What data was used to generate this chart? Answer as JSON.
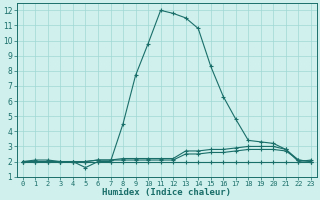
{
  "xlabel": "Humidex (Indice chaleur)",
  "bg_color": "#cff0ec",
  "line_color": "#1a6e6a",
  "grid_color": "#a0d8d4",
  "xlim": [
    -0.5,
    23.5
  ],
  "ylim": [
    1,
    12.5
  ],
  "xticks": [
    0,
    1,
    2,
    3,
    4,
    5,
    6,
    7,
    8,
    9,
    10,
    11,
    12,
    13,
    14,
    15,
    16,
    17,
    18,
    19,
    20,
    21,
    22,
    23
  ],
  "yticks": [
    1,
    2,
    3,
    4,
    5,
    6,
    7,
    8,
    9,
    10,
    11,
    12
  ],
  "lines": [
    {
      "x": [
        0,
        1,
        2,
        3,
        4,
        5,
        6,
        7,
        8,
        9,
        10,
        11,
        12,
        13,
        14,
        15,
        16,
        17,
        18,
        19,
        20,
        21,
        22,
        23
      ],
      "y": [
        2.0,
        2.1,
        2.1,
        2.0,
        2.0,
        1.6,
        2.0,
        2.0,
        4.5,
        7.7,
        9.8,
        12.0,
        11.8,
        11.5,
        10.8,
        8.3,
        6.3,
        4.8,
        3.4,
        3.3,
        3.2,
        2.8,
        2.0,
        2.1
      ]
    },
    {
      "x": [
        0,
        1,
        2,
        3,
        4,
        5,
        6,
        7,
        8,
        9,
        10,
        11,
        12,
        13,
        14,
        15,
        16,
        17,
        18,
        19,
        20,
        21,
        22,
        23
      ],
      "y": [
        2.0,
        2.0,
        2.0,
        2.0,
        2.0,
        2.0,
        2.1,
        2.1,
        2.1,
        2.1,
        2.1,
        2.1,
        2.1,
        2.5,
        2.5,
        2.6,
        2.6,
        2.7,
        2.8,
        2.8,
        2.8,
        2.7,
        2.1,
        2.0
      ]
    },
    {
      "x": [
        0,
        1,
        2,
        3,
        4,
        5,
        6,
        7,
        8,
        9,
        10,
        11,
        12,
        13,
        14,
        15,
        16,
        17,
        18,
        19,
        20,
        21,
        22,
        23
      ],
      "y": [
        2.0,
        2.0,
        2.0,
        2.0,
        2.0,
        2.0,
        2.1,
        2.1,
        2.2,
        2.2,
        2.2,
        2.2,
        2.2,
        2.7,
        2.7,
        2.8,
        2.8,
        2.9,
        3.0,
        3.0,
        3.0,
        2.8,
        2.1,
        2.0
      ]
    },
    {
      "x": [
        0,
        1,
        2,
        3,
        4,
        5,
        6,
        7,
        8,
        9,
        10,
        11,
        12,
        13,
        14,
        15,
        16,
        17,
        18,
        19,
        20,
        21,
        22,
        23
      ],
      "y": [
        2.0,
        2.0,
        2.0,
        2.0,
        2.0,
        2.0,
        2.0,
        2.0,
        2.0,
        2.0,
        2.0,
        2.0,
        2.0,
        2.0,
        2.0,
        2.0,
        2.0,
        2.0,
        2.0,
        2.0,
        2.0,
        2.0,
        2.0,
        2.0
      ]
    }
  ]
}
